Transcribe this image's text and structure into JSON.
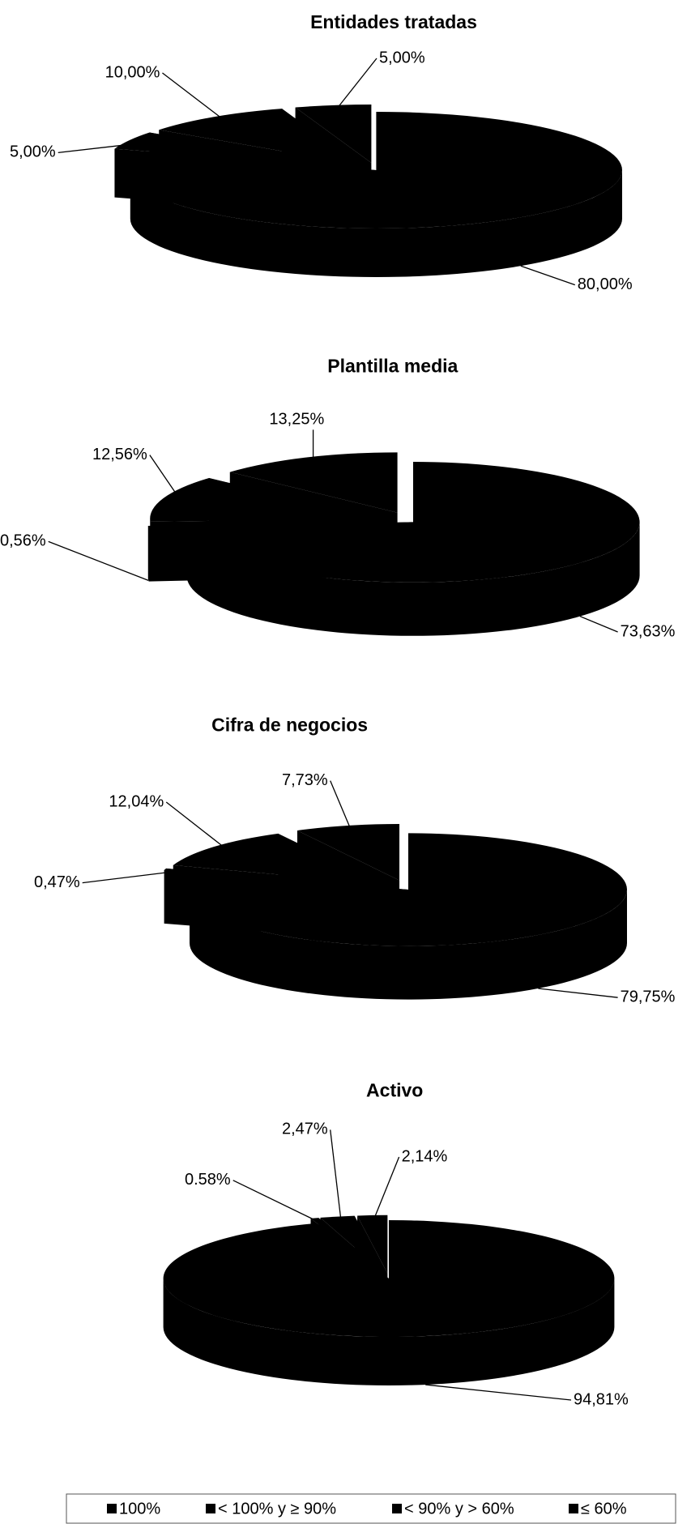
{
  "chart_data": [
    {
      "type": "pie",
      "title": "Entidades tratadas",
      "values": [
        80,
        5,
        10,
        5
      ],
      "value_labels": [
        "80,00%",
        "5,00%",
        "10,00%",
        "5,00%"
      ],
      "colors": [
        "#92c13e",
        "#4f81bd",
        "#e8454a",
        "#f2ee32"
      ]
    },
    {
      "type": "pie",
      "title": "Plantilla media",
      "values": [
        73.63,
        0.56,
        12.56,
        13.25
      ],
      "value_labels": [
        "73,63%",
        "0,56%",
        "12,56%",
        "13,25%"
      ],
      "colors": [
        "#92c13e",
        "#4f81bd",
        "#e8454a",
        "#f2ee32"
      ]
    },
    {
      "type": "pie",
      "title": "Cifra de negocios",
      "values": [
        79.75,
        0.47,
        12.04,
        7.73
      ],
      "value_labels": [
        "79,75%",
        "0,47%",
        "12,04%",
        "7,73%"
      ],
      "colors": [
        "#92c13e",
        "#4f81bd",
        "#e8454a",
        "#c9f1f1"
      ]
    },
    {
      "type": "pie",
      "title": "Activo",
      "values": [
        94.81,
        0.58,
        2.47,
        2.14
      ],
      "value_labels": [
        "94,81%",
        "0.58%",
        "2,47%",
        "2,14%"
      ],
      "colors": [
        "#92c13e",
        "#4f81bd",
        "#e8454a",
        "#f2ee32"
      ]
    }
  ],
  "legend": {
    "labels": [
      "100%",
      "< 100% y ≥ 90%",
      "< 90% y > 60%",
      "≤ 60%"
    ]
  }
}
